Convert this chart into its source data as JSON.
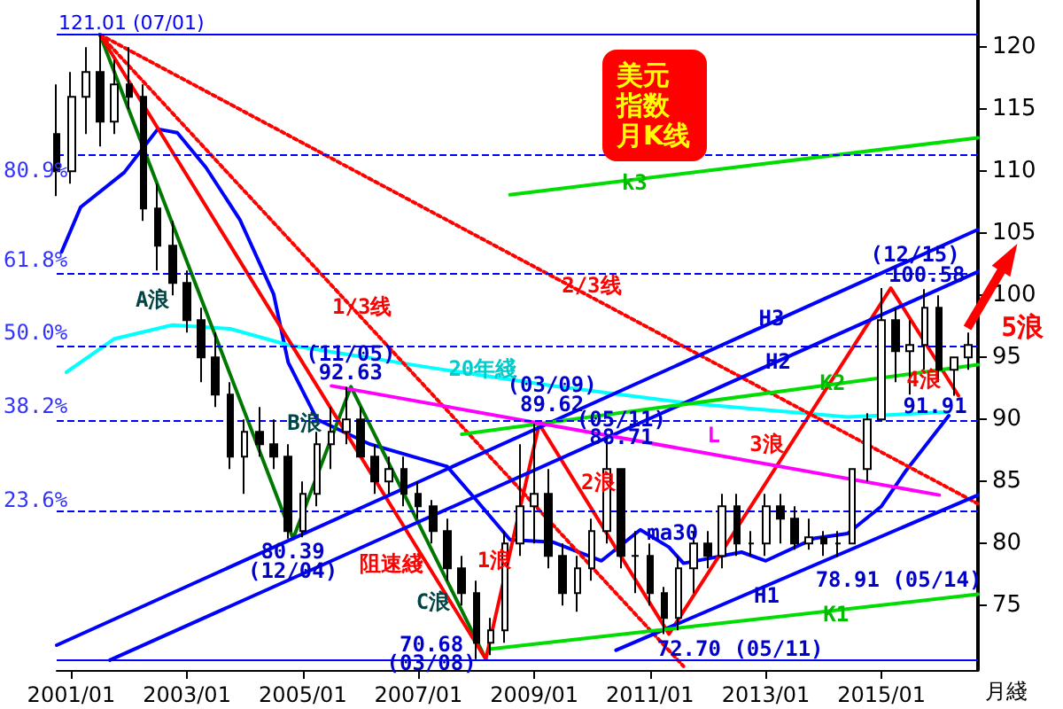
{
  "chart_data": {
    "type": "candlestick",
    "title": "美元指数月K线",
    "xlabel": "月綫",
    "color": "#000000",
    "marker": "none",
    "x": [
      "2000-10",
      "2001-01",
      "2001-04",
      "2001-07",
      "2001-10",
      "2002-01",
      "2002-04",
      "2002-07",
      "2002-10",
      "2003-01",
      "2003-04",
      "2003-07",
      "2003-10",
      "2004-01",
      "2004-04",
      "2004-07",
      "2004-10",
      "2005-01",
      "2005-04",
      "2005-07",
      "2005-10",
      "2006-01",
      "2006-04",
      "2006-07",
      "2006-10",
      "2007-01",
      "2007-04",
      "2007-07",
      "2007-10",
      "2008-01",
      "2008-04",
      "2008-07",
      "2008-10",
      "2009-01",
      "2009-04",
      "2009-07",
      "2009-10",
      "2010-01",
      "2010-04",
      "2010-07",
      "2010-10",
      "2011-01",
      "2011-04",
      "2011-07",
      "2011-10",
      "2012-01",
      "2012-04",
      "2012-07",
      "2012-10",
      "2013-01",
      "2013-04",
      "2013-07",
      "2013-10",
      "2014-01",
      "2014-04",
      "2014-07",
      "2014-10",
      "2015-01",
      "2015-04",
      "2015-07",
      "2015-10",
      "2016-01",
      "2016-04",
      "2016-07"
    ],
    "ohlc": [
      [
        113,
        117,
        108,
        110
      ],
      [
        110,
        118,
        109,
        116
      ],
      [
        116,
        120,
        113,
        118
      ],
      [
        118,
        121.01,
        112,
        114
      ],
      [
        114,
        119,
        113,
        117
      ],
      [
        117,
        120,
        115,
        116
      ],
      [
        116,
        117,
        106,
        107
      ],
      [
        107,
        109,
        102,
        104
      ],
      [
        104,
        106,
        100,
        101
      ],
      [
        101,
        102,
        97,
        98
      ],
      [
        98,
        99,
        93,
        95
      ],
      [
        95,
        97,
        91,
        92
      ],
      [
        92,
        93,
        86,
        87
      ],
      [
        87,
        90,
        84,
        89
      ],
      [
        89,
        91,
        87,
        88
      ],
      [
        88,
        90,
        86,
        87
      ],
      [
        87,
        88,
        80.39,
        81
      ],
      [
        81,
        85,
        80.5,
        84
      ],
      [
        84,
        89,
        83,
        88
      ],
      [
        88,
        91,
        86,
        89
      ],
      [
        89,
        92.63,
        88,
        90
      ],
      [
        90,
        91,
        87,
        87
      ],
      [
        87,
        88,
        84,
        85
      ],
      [
        85,
        87,
        84,
        86
      ],
      [
        86,
        87,
        83,
        84
      ],
      [
        84,
        85,
        82,
        83
      ],
      [
        83,
        83.5,
        80,
        81
      ],
      [
        81,
        82,
        77,
        78
      ],
      [
        78,
        79,
        75,
        76
      ],
      [
        76,
        77,
        70.68,
        72
      ],
      [
        72,
        74,
        71,
        73
      ],
      [
        73,
        81,
        72,
        80
      ],
      [
        80,
        88,
        79,
        83
      ],
      [
        83,
        89.62,
        80,
        84
      ],
      [
        84,
        86,
        78,
        79
      ],
      [
        79,
        80,
        75,
        76
      ],
      [
        76,
        79,
        74.5,
        78
      ],
      [
        78,
        82,
        77,
        81
      ],
      [
        81,
        88.71,
        80,
        86
      ],
      [
        86,
        86,
        78,
        79
      ],
      [
        79,
        81,
        76,
        79
      ],
      [
        79,
        80,
        75,
        76
      ],
      [
        76,
        76.5,
        72.7,
        74
      ],
      [
        74,
        79,
        73,
        78
      ],
      [
        78,
        81,
        76,
        80
      ],
      [
        80,
        81,
        78,
        79
      ],
      [
        79,
        84,
        78,
        83
      ],
      [
        83,
        84,
        79,
        80
      ],
      [
        80,
        81,
        79,
        80
      ],
      [
        80,
        84,
        79,
        83
      ],
      [
        83,
        84,
        80,
        82
      ],
      [
        82,
        83,
        79.5,
        80
      ],
      [
        80,
        82,
        79.5,
        80.5
      ],
      [
        80.5,
        81,
        79,
        80
      ],
      [
        80,
        81,
        78.91,
        80
      ],
      [
        80,
        86,
        80,
        86
      ],
      [
        86,
        90.5,
        85,
        90
      ],
      [
        90,
        100.58,
        90,
        98
      ],
      [
        98,
        99,
        93,
        95.5
      ],
      [
        95.5,
        98,
        92,
        96
      ],
      [
        96,
        100.5,
        94,
        99
      ],
      [
        99,
        100,
        93,
        94
      ],
      [
        94,
        95,
        91.91,
        95
      ],
      [
        95,
        97,
        94,
        96
      ]
    ],
    "series": [
      {
        "type": "line",
        "color": "#0000ff",
        "x": [
          "2000-11",
          "2001-03",
          "2001-12",
          "2002-07",
          "2002-11",
          "2003-05",
          "2003-12",
          "2004-07",
          "2004-10",
          "2005-04",
          "2006-03",
          "2007-07",
          "2008-01",
          "2008-08",
          "2009-05",
          "2010-03",
          "2010-11",
          "2011-05",
          "2011-08",
          "2012-08",
          "2013-01",
          "2013-11",
          "2014-06",
          "2015-01",
          "2015-06",
          "2016-03"
        ],
        "values": [
          103.5,
          107.1,
          109.9,
          113.4,
          113.1,
          110.3,
          106.1,
          100.1,
          94.6,
          90,
          88,
          86.2,
          83.5,
          80.3,
          80.1,
          78.6,
          81.1,
          79.7,
          78.4,
          79.3,
          78.6,
          80.4,
          80.8,
          83,
          85.8,
          90.3
        ]
      },
      {
        "type": "line",
        "color": "#00ffff",
        "x": [
          "2000-12",
          "2001-10",
          "2002-10",
          "2003-10",
          "2004-10",
          "2005-11",
          "2007-03",
          "2009-05",
          "2011-09",
          "2014-06",
          "2016-03"
        ],
        "values": [
          93.8,
          96.5,
          97.6,
          97.3,
          96,
          95.2,
          94.2,
          92.7,
          91.3,
          90.2,
          90.6
        ]
      },
      {
        "type": "line",
        "color": "#007700",
        "x": [
          "2001-07",
          "2004-11",
          "2005-11",
          "2008-03"
        ],
        "values": [
          121.01,
          80.39,
          92.63,
          70.68
        ]
      },
      {
        "type": "line",
        "color": "#ff0000",
        "x": [
          "2008-03",
          "2009-02",
          "2011-05",
          "2015-03",
          "2016-05"
        ],
        "values": [
          70.68,
          89.62,
          72.7,
          100.58,
          91.91
        ]
      },
      {
        "type": "line",
        "color": "#ff0000",
        "x": [
          "2001-07",
          "2008-03"
        ],
        "values": [
          121.01,
          70.68
        ]
      },
      {
        "type": "line",
        "color": "#ff0000",
        "line_style": "dotted",
        "x": [
          "2001-07",
          "2011-08"
        ],
        "values": [
          121.01,
          70.1
        ]
      },
      {
        "type": "line",
        "color": "#ff0000",
        "line_style": "dotted",
        "x": [
          "2001-07",
          "2016-09"
        ],
        "values": [
          121.01,
          83.2
        ]
      },
      {
        "type": "line",
        "color": "#0000ff",
        "x": [
          "2010-06",
          "2016-09"
        ],
        "values": [
          71.4,
          83.9
        ]
      },
      {
        "type": "line",
        "color": "#0000ff",
        "x": [
          "2001-09",
          "2016-09"
        ],
        "values": [
          70.6,
          101.9
        ]
      },
      {
        "type": "line",
        "color": "#0000ff",
        "x": [
          "2000-10",
          "2016-09"
        ],
        "values": [
          71.8,
          105.3
        ]
      },
      {
        "type": "line",
        "color": "#00dd00",
        "x": [
          "2008-04",
          "2016-09"
        ],
        "values": [
          71.5,
          75.9
        ]
      },
      {
        "type": "line",
        "color": "#00dd00",
        "x": [
          "2007-10",
          "2016-09"
        ],
        "values": [
          88.8,
          94.4
        ]
      },
      {
        "type": "line",
        "color": "#00dd00",
        "x": [
          "2008-08",
          "2016-09"
        ],
        "values": [
          108.1,
          112.7
        ]
      },
      {
        "type": "line",
        "color": "#ff00ff",
        "x": [
          "2005-07",
          "2016-01"
        ],
        "values": [
          92.7,
          83.9
        ]
      }
    ],
    "ref_lines": [
      {
        "axis": "y",
        "value": 121.01,
        "label": "121.01 (07/01)",
        "color": "#0000ff",
        "line_style": "solid"
      },
      {
        "axis": "y",
        "value": 111.4,
        "color": "#0000ff",
        "line_style": "dashed"
      },
      {
        "axis": "y",
        "value": 101.78,
        "color": "#0000ff",
        "line_style": "dashed"
      },
      {
        "axis": "y",
        "value": 95.85,
        "color": "#0000ff",
        "line_style": "dashed"
      },
      {
        "axis": "y",
        "value": 89.91,
        "color": "#0000ff",
        "line_style": "dashed"
      },
      {
        "axis": "y",
        "value": 82.56,
        "color": "#0000ff",
        "line_style": "dashed"
      },
      {
        "axis": "y",
        "value": 70.68,
        "color": "#0000ff",
        "line_style": "solid"
      }
    ],
    "annotations": [
      "(11/05)",
      "92.63",
      "80.39",
      "(12/04)",
      "70.68",
      "(03/08)",
      "(03/09)",
      "89.62",
      "(05/11)",
      "88.71",
      "72.70 (05/11)",
      "78.91 (05/14)",
      "(12/15)",
      "100.58",
      "91.91",
      "20年綫",
      "ma30",
      "1/3线",
      "2/3线",
      "阻速綫",
      "A浪",
      "B浪",
      "C浪",
      "1浪",
      "2浪",
      "3浪",
      "4浪",
      "H1",
      "H2",
      "H3",
      "K1",
      "K2",
      "k3",
      "L",
      "5浪",
      "80.9%",
      "61.8%",
      "50.0%",
      "38.2%",
      "23.6%"
    ],
    "xlim": [
      "2000-10",
      "2016-09"
    ],
    "xticks": [
      {
        "value": "2001-01",
        "label": "2001/01"
      },
      {
        "value": "2003-01",
        "label": "2003/01"
      },
      {
        "value": "2005-01",
        "label": "2005/01"
      },
      {
        "value": "2007-01",
        "label": "2007/01"
      },
      {
        "value": "2009-01",
        "label": "2009/01"
      },
      {
        "value": "2011-01",
        "label": "2011/01"
      },
      {
        "value": "2013-01",
        "label": "2013/01"
      },
      {
        "value": "2015-01",
        "label": "2015/01"
      }
    ],
    "ylim": [
      69.8,
      123.8
    ],
    "yticks": [
      75,
      80,
      85,
      90,
      95,
      100,
      105,
      110,
      115,
      120
    ]
  }
}
